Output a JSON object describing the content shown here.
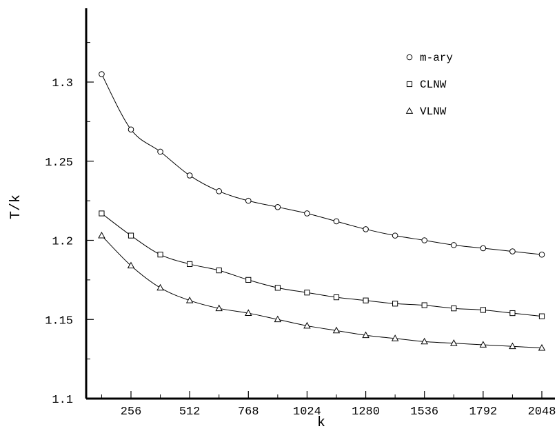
{
  "chart_data": {
    "type": "line",
    "xlabel": "k",
    "ylabel": "T/k",
    "xlim": [
      128,
      2048
    ],
    "ylim": [
      1.1,
      1.35
    ],
    "xticks": [
      256,
      512,
      768,
      1024,
      1280,
      1536,
      1792,
      2048
    ],
    "xtick_labels": [
      "256",
      "512",
      "768",
      "1024",
      "1280",
      "1536",
      "1792",
      "2048"
    ],
    "yticks": [
      1.1,
      1.15,
      1.2,
      1.25,
      1.3
    ],
    "ytick_labels": [
      "1.1",
      "1.15",
      "1.2",
      "1.25",
      "1.3"
    ],
    "grid": false,
    "legend_position": "top-right",
    "x": [
      128,
      256,
      384,
      512,
      640,
      768,
      896,
      1024,
      1152,
      1280,
      1408,
      1536,
      1664,
      1792,
      1920,
      2048
    ],
    "series": [
      {
        "name": "m-ary",
        "marker": "circle",
        "values": [
          1.305,
          1.27,
          1.256,
          1.241,
          1.231,
          1.225,
          1.221,
          1.217,
          1.212,
          1.207,
          1.203,
          1.2,
          1.197,
          1.195,
          1.193,
          1.191
        ]
      },
      {
        "name": "CLNW",
        "marker": "square",
        "values": [
          1.217,
          1.203,
          1.191,
          1.185,
          1.181,
          1.175,
          1.17,
          1.167,
          1.164,
          1.162,
          1.16,
          1.159,
          1.157,
          1.156,
          1.154,
          1.152
        ]
      },
      {
        "name": "VLNW",
        "marker": "triangle",
        "values": [
          1.203,
          1.184,
          1.17,
          1.162,
          1.157,
          1.154,
          1.15,
          1.146,
          1.143,
          1.14,
          1.138,
          1.136,
          1.135,
          1.134,
          1.133,
          1.132
        ]
      }
    ]
  }
}
